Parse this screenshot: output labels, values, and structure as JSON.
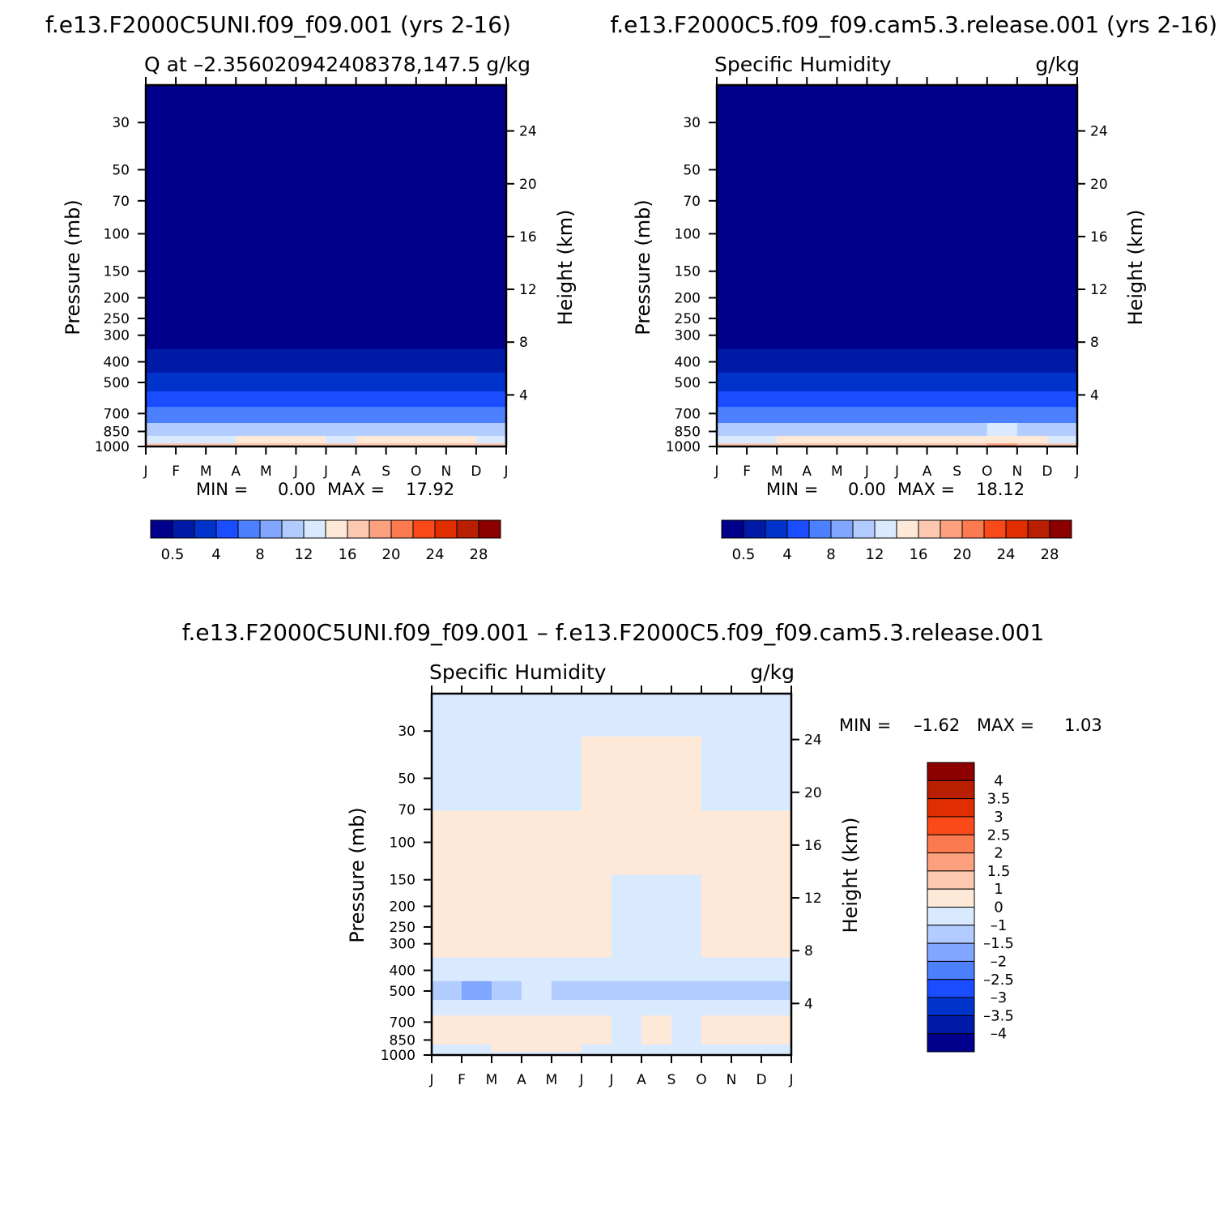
{
  "figure": {
    "title_left": "f.e13.F2000C5UNI.f09_f09.001  (yrs 2-16)",
    "title_right": "f.e13.F2000C5.f09_f09.cam5.3.release.001  (yrs 2-16)",
    "title_diff": "f.e13.F2000C5UNI.f09_f09.001 – f.e13.F2000C5.f09_f09.cam5.3.release.001"
  },
  "chart_data": [
    {
      "type": "heatmap",
      "panel_label": "Q at –2.356020942408378,147.5",
      "units": "g/kg",
      "xlabel": "",
      "ylabel": "Pressure (mb)",
      "ylabel_right": "Height (km)",
      "x_ticks": [
        "J",
        "F",
        "M",
        "A",
        "M",
        "J",
        "J",
        "A",
        "S",
        "O",
        "N",
        "D",
        "J"
      ],
      "y_ticks": [
        30,
        50,
        70,
        100,
        150,
        200,
        250,
        300,
        400,
        500,
        700,
        850,
        1000
      ],
      "y_right_ticks": [
        4,
        8,
        12,
        16,
        20,
        24
      ],
      "ylim": [
        20,
        1000
      ],
      "y_scale": "log",
      "min_label": "MIN =",
      "min_value": "0.00",
      "max_label": "MAX =",
      "max_value": "17.92",
      "levels_pressure": [
        1000,
        925,
        850,
        700,
        600,
        500,
        400,
        300,
        200,
        100,
        50,
        20
      ],
      "values": [
        [
          16.5,
          16.8,
          17.2,
          17.5,
          17.6,
          17.4,
          17.2,
          17.3,
          17.5,
          17.9,
          17.6,
          17.0
        ],
        [
          13.2,
          13.4,
          13.8,
          14.0,
          14.2,
          14.0,
          13.9,
          14.0,
          14.1,
          14.4,
          14.2,
          13.7
        ],
        [
          10.8,
          11.0,
          11.5,
          11.7,
          11.8,
          11.5,
          11.4,
          11.5,
          11.6,
          11.9,
          11.6,
          11.1
        ],
        [
          6.4,
          6.6,
          7.0,
          7.1,
          7.0,
          6.7,
          6.6,
          6.7,
          6.8,
          7.1,
          6.9,
          6.5
        ],
        [
          4.4,
          4.6,
          4.9,
          5.0,
          4.9,
          4.6,
          4.5,
          4.6,
          4.7,
          4.9,
          4.7,
          4.5
        ],
        [
          2.8,
          3.0,
          3.3,
          3.4,
          3.3,
          3.0,
          2.9,
          2.9,
          3.1,
          3.3,
          3.1,
          2.9
        ],
        [
          1.2,
          1.3,
          1.5,
          1.6,
          1.5,
          1.3,
          1.3,
          1.3,
          1.4,
          1.5,
          1.4,
          1.3
        ],
        [
          0.3,
          0.3,
          0.4,
          0.4,
          0.4,
          0.3,
          0.3,
          0.3,
          0.3,
          0.4,
          0.3,
          0.3
        ],
        [
          0.02,
          0.02,
          0.03,
          0.03,
          0.03,
          0.02,
          0.02,
          0.02,
          0.02,
          0.03,
          0.02,
          0.02
        ],
        [
          0.0,
          0.0,
          0.0,
          0.0,
          0.0,
          0.0,
          0.0,
          0.0,
          0.0,
          0.0,
          0.0,
          0.0
        ],
        [
          0.0,
          0.0,
          0.0,
          0.0,
          0.0,
          0.0,
          0.0,
          0.0,
          0.0,
          0.0,
          0.0,
          0.0
        ],
        [
          0.0,
          0.0,
          0.0,
          0.0,
          0.0,
          0.0,
          0.0,
          0.0,
          0.0,
          0.0,
          0.0,
          0.0
        ]
      ],
      "colorbar": {
        "orientation": "horizontal",
        "levels": [
          0.5,
          2,
          4,
          6,
          8,
          10,
          12,
          14,
          16,
          18,
          20,
          22,
          24,
          26,
          28
        ],
        "labels": [
          "0.5",
          "4",
          "8",
          "12",
          "16",
          "20",
          "24",
          "28"
        ],
        "colors": [
          "#00008c",
          "#001aa8",
          "#0033cc",
          "#1a4dff",
          "#4d80ff",
          "#80a6ff",
          "#b3ccff",
          "#d9eaff",
          "#fee8d8",
          "#fdc8b0",
          "#fca080",
          "#fb7a50",
          "#fa4a1a",
          "#e02e00",
          "#b81e00",
          "#8c0000"
        ]
      }
    },
    {
      "type": "heatmap",
      "panel_label": "Specific Humidity",
      "units": "g/kg",
      "xlabel": "",
      "ylabel": "Pressure (mb)",
      "ylabel_right": "Height (km)",
      "x_ticks": [
        "J",
        "F",
        "M",
        "A",
        "M",
        "J",
        "J",
        "A",
        "S",
        "O",
        "N",
        "D",
        "J"
      ],
      "y_ticks": [
        30,
        50,
        70,
        100,
        150,
        200,
        250,
        300,
        400,
        500,
        700,
        850,
        1000
      ],
      "y_right_ticks": [
        4,
        8,
        12,
        16,
        20,
        24
      ],
      "ylim": [
        20,
        1000
      ],
      "y_scale": "log",
      "min_label": "MIN =",
      "min_value": "0.00",
      "max_label": "MAX =",
      "max_value": "18.12",
      "levels_pressure": [
        1000,
        925,
        850,
        700,
        600,
        500,
        400,
        300,
        200,
        100,
        50,
        20
      ],
      "values": [
        [
          16.9,
          17.2,
          17.5,
          17.7,
          17.9,
          17.8,
          17.7,
          17.8,
          17.9,
          18.1,
          17.8,
          17.3
        ],
        [
          13.6,
          13.8,
          14.1,
          14.2,
          14.4,
          14.3,
          14.2,
          14.3,
          14.4,
          14.6,
          14.3,
          13.9
        ],
        [
          11.2,
          11.4,
          11.7,
          11.8,
          11.9,
          11.8,
          11.7,
          11.8,
          11.9,
          12.1,
          11.8,
          11.4
        ],
        [
          6.8,
          7.0,
          7.2,
          7.2,
          7.1,
          7.0,
          6.9,
          7.0,
          7.1,
          7.3,
          7.1,
          6.8
        ],
        [
          4.6,
          4.8,
          5.0,
          5.0,
          4.9,
          4.8,
          4.7,
          4.8,
          4.9,
          5.0,
          4.8,
          4.6
        ],
        [
          2.9,
          3.1,
          3.3,
          3.3,
          3.2,
          3.1,
          3.0,
          3.0,
          3.1,
          3.2,
          3.1,
          2.9
        ],
        [
          1.2,
          1.3,
          1.4,
          1.4,
          1.4,
          1.3,
          1.3,
          1.3,
          1.3,
          1.4,
          1.3,
          1.2
        ],
        [
          0.3,
          0.3,
          0.3,
          0.3,
          0.3,
          0.3,
          0.3,
          0.3,
          0.3,
          0.3,
          0.3,
          0.3
        ],
        [
          0.02,
          0.02,
          0.02,
          0.02,
          0.02,
          0.02,
          0.02,
          0.02,
          0.02,
          0.02,
          0.02,
          0.02
        ],
        [
          0.0,
          0.0,
          0.0,
          0.0,
          0.0,
          0.0,
          0.0,
          0.0,
          0.0,
          0.0,
          0.0,
          0.0
        ],
        [
          0.0,
          0.0,
          0.0,
          0.0,
          0.0,
          0.0,
          0.0,
          0.0,
          0.0,
          0.0,
          0.0,
          0.0
        ],
        [
          0.0,
          0.0,
          0.0,
          0.0,
          0.0,
          0.0,
          0.0,
          0.0,
          0.0,
          0.0,
          0.0,
          0.0
        ]
      ],
      "colorbar": {
        "orientation": "horizontal",
        "levels": [
          0.5,
          2,
          4,
          6,
          8,
          10,
          12,
          14,
          16,
          18,
          20,
          22,
          24,
          26,
          28
        ],
        "labels": [
          "0.5",
          "4",
          "8",
          "12",
          "16",
          "20",
          "24",
          "28"
        ],
        "colors": [
          "#00008c",
          "#001aa8",
          "#0033cc",
          "#1a4dff",
          "#4d80ff",
          "#80a6ff",
          "#b3ccff",
          "#d9eaff",
          "#fee8d8",
          "#fdc8b0",
          "#fca080",
          "#fb7a50",
          "#fa4a1a",
          "#e02e00",
          "#b81e00",
          "#8c0000"
        ]
      }
    },
    {
      "type": "heatmap",
      "panel_label": "Specific Humidity",
      "units": "g/kg",
      "xlabel": "",
      "ylabel": "Pressure (mb)",
      "ylabel_right": "Height (km)",
      "x_ticks": [
        "J",
        "F",
        "M",
        "A",
        "M",
        "J",
        "J",
        "A",
        "S",
        "O",
        "N",
        "D",
        "J"
      ],
      "y_ticks": [
        30,
        50,
        70,
        100,
        150,
        200,
        250,
        300,
        400,
        500,
        700,
        850,
        1000
      ],
      "y_right_ticks": [
        4,
        8,
        12,
        16,
        20,
        24
      ],
      "ylim": [
        20,
        1000
      ],
      "y_scale": "log",
      "min_label": "MIN =",
      "min_value": "–1.62",
      "max_label": "MAX =",
      "max_value": "1.03",
      "levels_pressure": [
        1000,
        925,
        850,
        700,
        600,
        500,
        400,
        300,
        200,
        100,
        50,
        20
      ],
      "values": [
        [
          -0.4,
          -0.4,
          -0.3,
          -0.2,
          -0.3,
          -0.4,
          -0.5,
          -0.5,
          -0.4,
          -0.2,
          -0.2,
          -0.3
        ],
        [
          -0.2,
          -0.1,
          0.0,
          0.2,
          0.0,
          -0.3,
          -0.4,
          -0.3,
          -0.4,
          -0.1,
          -0.1,
          -0.1
        ],
        [
          0.3,
          0.5,
          0.6,
          0.9,
          0.6,
          0.2,
          -0.2,
          0.3,
          -0.2,
          0.3,
          0.4,
          0.4
        ],
        [
          0.4,
          0.6,
          0.5,
          0.7,
          0.4,
          0.1,
          -0.3,
          0.2,
          -0.2,
          0.3,
          0.4,
          0.3
        ],
        [
          -0.8,
          -0.9,
          -0.5,
          -0.6,
          -0.9,
          -0.8,
          -0.9,
          -1.0,
          -1.0,
          -0.8,
          -1.0,
          -1.0
        ],
        [
          -1.3,
          -1.6,
          -1.2,
          -0.6,
          -1.2,
          -1.1,
          -1.2,
          -1.3,
          -1.5,
          -1.2,
          -1.3,
          -1.2
        ],
        [
          -0.4,
          -0.2,
          -0.1,
          -0.4,
          -0.5,
          -0.4,
          -0.5,
          -0.4,
          -0.5,
          -0.4,
          -0.5,
          -0.3
        ],
        [
          0.1,
          0.4,
          0.4,
          0.4,
          0.4,
          0.2,
          -0.2,
          -0.3,
          -0.3,
          0.4,
          0.3,
          0.2
        ],
        [
          0.4,
          0.5,
          0.5,
          0.5,
          0.5,
          0.2,
          -0.3,
          -0.4,
          -0.3,
          0.5,
          0.5,
          0.5
        ],
        [
          0.4,
          0.4,
          0.4,
          0.5,
          0.4,
          0.4,
          0.3,
          0.4,
          0.4,
          0.3,
          0.3,
          0.3
        ],
        [
          -0.3,
          -0.3,
          -0.3,
          -0.3,
          -0.3,
          0.3,
          0.4,
          0.4,
          0.3,
          -0.3,
          -0.3,
          -0.3
        ],
        [
          -0.3,
          -0.3,
          -0.3,
          -0.3,
          -0.3,
          -0.3,
          -0.3,
          -0.3,
          -0.3,
          -0.3,
          -0.3,
          -0.3
        ]
      ],
      "colorbar": {
        "orientation": "vertical",
        "levels": [
          -4,
          -3.5,
          -3,
          -2.5,
          -2,
          -1.5,
          -1,
          0,
          1,
          1.5,
          2,
          2.5,
          3,
          3.5,
          4
        ],
        "labels": [
          "4",
          "3.5",
          "3",
          "2.5",
          "2",
          "1.5",
          "1",
          "0",
          "–1",
          "–1.5",
          "–2",
          "–2.5",
          "–3",
          "–3.5",
          "–4"
        ],
        "colors": [
          "#00008c",
          "#001aa8",
          "#0033cc",
          "#1a4dff",
          "#4d80ff",
          "#80a6ff",
          "#b3ccff",
          "#d9eaff",
          "#fee8d8",
          "#fdc8b0",
          "#fca080",
          "#fb7a50",
          "#fa4a1a",
          "#e02e00",
          "#b81e00",
          "#8c0000"
        ]
      }
    }
  ]
}
